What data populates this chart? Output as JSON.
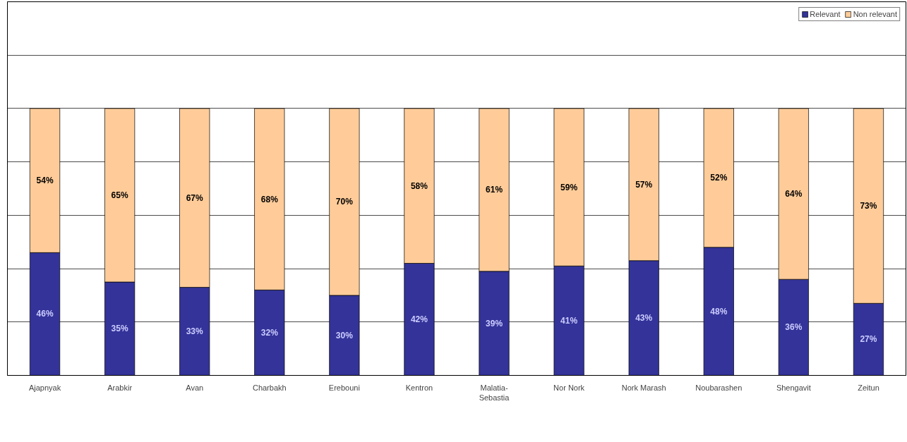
{
  "chart_data": {
    "type": "bar",
    "stacked": true,
    "categories": [
      "Ajapnyak",
      "Arabkir",
      "Avan",
      "Charbakh",
      "Erebouni",
      "Kentron",
      "Malatia-Sebastia",
      "Nor Nork",
      "Nork Marash",
      "Noubarashen",
      "Shengavit",
      "Zeitun"
    ],
    "series": [
      {
        "name": "Relevant",
        "color": "#333399",
        "values": [
          46,
          35,
          33,
          32,
          30,
          42,
          39,
          41,
          43,
          48,
          36,
          27
        ],
        "value_labels": [
          "46%",
          "35%",
          "33%",
          "32%",
          "30%",
          "42%",
          "39%",
          "41%",
          "43%",
          "48%",
          "36%",
          "27%"
        ]
      },
      {
        "name": "Non relevant",
        "color": "#ffcc99",
        "values": [
          54,
          65,
          67,
          68,
          70,
          58,
          61,
          59,
          57,
          52,
          64,
          73
        ],
        "value_labels": [
          "54%",
          "65%",
          "67%",
          "68%",
          "70%",
          "58%",
          "61%",
          "59%",
          "57%",
          "52%",
          "64%",
          "73%"
        ]
      }
    ],
    "grid": "y",
    "legend": "top right",
    "tick_labels": "x"
  }
}
